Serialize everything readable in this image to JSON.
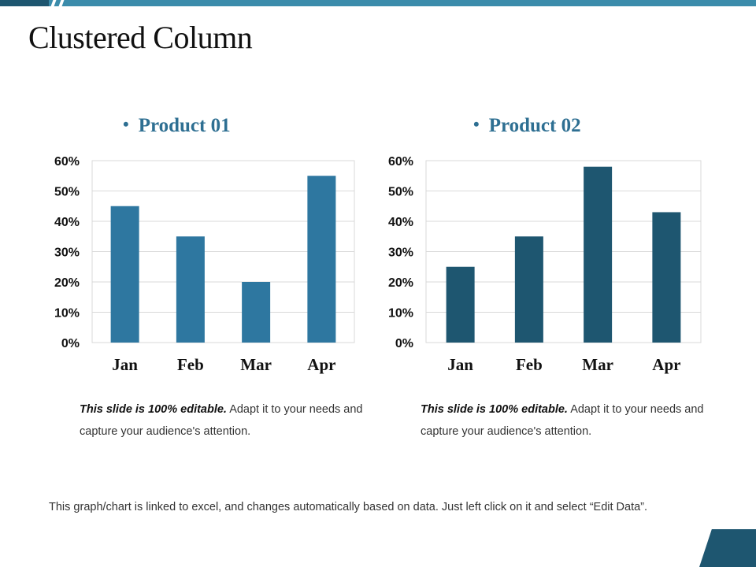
{
  "slide": {
    "title": "Clustered Column",
    "footer_note": "This graph/chart is linked to excel, and changes automatically based on data. Just left click on it and select “Edit Data”."
  },
  "colors": {
    "accent_light": "#3b8cab",
    "accent_dark": "#1e5670"
  },
  "panels": [
    {
      "heading": "Product 01",
      "note_bold": "This slide is 100% editable.",
      "note_text": " Adapt it to your needs and capture your audience's attention."
    },
    {
      "heading": "Product 02",
      "note_bold": "This slide is 100% editable.",
      "note_text": " Adapt it to your needs and capture your audience's attention."
    }
  ],
  "chart_data": [
    {
      "type": "bar",
      "categories": [
        "Jan",
        "Feb",
        "Mar",
        "Apr"
      ],
      "values": [
        45,
        35,
        20,
        55
      ],
      "yticks": [
        "0%",
        "10%",
        "20%",
        "30%",
        "40%",
        "50%",
        "60%"
      ],
      "ylim": [
        0,
        60
      ],
      "grid": true,
      "color": "#2e77a0"
    },
    {
      "type": "bar",
      "categories": [
        "Jan",
        "Feb",
        "Mar",
        "Apr"
      ],
      "values": [
        25,
        35,
        58,
        43
      ],
      "yticks": [
        "0%",
        "10%",
        "20%",
        "30%",
        "40%",
        "50%",
        "60%"
      ],
      "ylim": [
        0,
        60
      ],
      "grid": true,
      "color": "#1e5670"
    }
  ]
}
